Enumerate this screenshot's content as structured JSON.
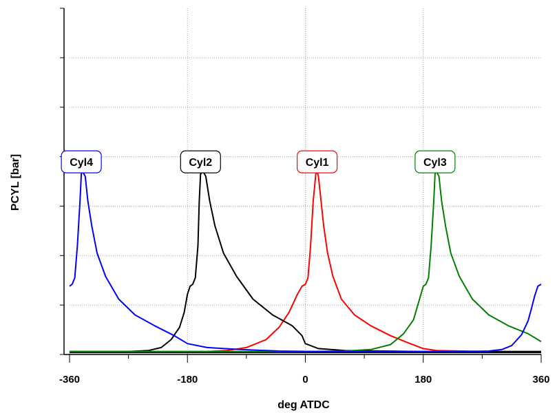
{
  "chart_data": {
    "type": "line",
    "xlabel": "deg ATDC",
    "ylabel": "PCYL [bar]",
    "xlim": [
      -360,
      360
    ],
    "ylim": [
      0,
      7
    ],
    "xticks": [
      -360,
      -180,
      0,
      180,
      360
    ],
    "xtick_labels": [
      "-360",
      "-180",
      "0",
      "180",
      "360"
    ],
    "x_minor_ticks": [
      -270,
      -90,
      90,
      270
    ],
    "y_minor_ticks": [
      1,
      2,
      3,
      4,
      5,
      6
    ],
    "grid": true,
    "yticklabels_shown": false,
    "baseline": 0.04,
    "baseline_color": "#000000",
    "series": [
      {
        "name": "Cyl1",
        "color": "#ff0000",
        "x": [
          -360,
          -330,
          -300,
          -270,
          -240,
          -210,
          -180,
          -150,
          -120,
          -90,
          -60,
          -40,
          -25,
          -12,
          -5,
          0,
          4,
          8,
          12,
          16,
          18,
          20,
          24,
          28,
          34,
          42,
          55,
          75,
          100,
          130,
          160,
          180,
          200,
          240,
          280,
          320,
          360
        ],
        "y": [
          0.06,
          0.06,
          0.06,
          0.06,
          0.06,
          0.06,
          0.06,
          0.06,
          0.08,
          0.14,
          0.3,
          0.55,
          0.85,
          1.22,
          1.38,
          1.42,
          1.55,
          2.2,
          3.1,
          3.65,
          3.7,
          3.6,
          3.1,
          2.6,
          2.05,
          1.58,
          1.12,
          0.8,
          0.58,
          0.38,
          0.22,
          0.12,
          0.08,
          0.07,
          0.06,
          0.06,
          0.06
        ]
      },
      {
        "name": "Cyl2",
        "color": "#000000",
        "x": [
          -360,
          -330,
          -300,
          -270,
          -240,
          -220,
          -205,
          -192,
          -185,
          -180,
          -176,
          -172,
          -168,
          -164,
          -162,
          -160,
          -156,
          -152,
          -146,
          -138,
          -125,
          -105,
          -80,
          -50,
          -20,
          -5,
          0,
          20,
          60,
          120,
          180,
          240,
          300,
          360
        ],
        "y": [
          0.06,
          0.06,
          0.06,
          0.06,
          0.08,
          0.14,
          0.3,
          0.55,
          0.85,
          1.22,
          1.38,
          1.42,
          1.55,
          2.2,
          3.1,
          3.65,
          3.7,
          3.6,
          3.1,
          2.6,
          2.05,
          1.58,
          1.12,
          0.8,
          0.58,
          0.38,
          0.22,
          0.12,
          0.08,
          0.07,
          0.06,
          0.06,
          0.06,
          0.06
        ]
      },
      {
        "name": "Cyl3",
        "color": "#008000",
        "x": [
          -360,
          -240,
          -120,
          0,
          60,
          100,
          130,
          150,
          165,
          175,
          180,
          184,
          188,
          192,
          196,
          198,
          200,
          204,
          208,
          214,
          222,
          235,
          255,
          280,
          310,
          340,
          355,
          360
        ],
        "y": [
          0.06,
          0.06,
          0.06,
          0.06,
          0.07,
          0.1,
          0.2,
          0.42,
          0.7,
          1.15,
          1.38,
          1.42,
          1.55,
          2.2,
          3.1,
          3.65,
          3.7,
          3.6,
          3.1,
          2.6,
          2.05,
          1.58,
          1.12,
          0.8,
          0.58,
          0.42,
          0.3,
          0.26
        ]
      },
      {
        "name": "Cyl4",
        "color": "#0000ff",
        "x": [
          -360,
          -356,
          -352,
          -348,
          -344,
          -342,
          -340,
          -336,
          -332,
          -326,
          -318,
          -305,
          -285,
          -260,
          -230,
          -200,
          -180,
          -150,
          -100,
          -40,
          20,
          80,
          140,
          180,
          240,
          280,
          300,
          315,
          330,
          340,
          345,
          350,
          355,
          360
        ],
        "y": [
          1.38,
          1.42,
          1.55,
          2.2,
          3.1,
          3.65,
          3.7,
          3.6,
          3.1,
          2.6,
          2.05,
          1.58,
          1.12,
          0.8,
          0.58,
          0.38,
          0.22,
          0.14,
          0.1,
          0.07,
          0.06,
          0.06,
          0.06,
          0.06,
          0.06,
          0.07,
          0.1,
          0.18,
          0.4,
          0.68,
          0.92,
          1.18,
          1.38,
          1.42
        ]
      }
    ],
    "annotations": [
      {
        "text": "Cyl4",
        "x": -342,
        "y": 3.7,
        "color": "#0000ff"
      },
      {
        "text": "Cyl2",
        "x": -160,
        "y": 3.7,
        "color": "#000000"
      },
      {
        "text": "Cyl1",
        "x": 18,
        "y": 3.7,
        "color": "#ff0000"
      },
      {
        "text": "Cyl3",
        "x": 198,
        "y": 3.7,
        "color": "#008000"
      }
    ]
  }
}
